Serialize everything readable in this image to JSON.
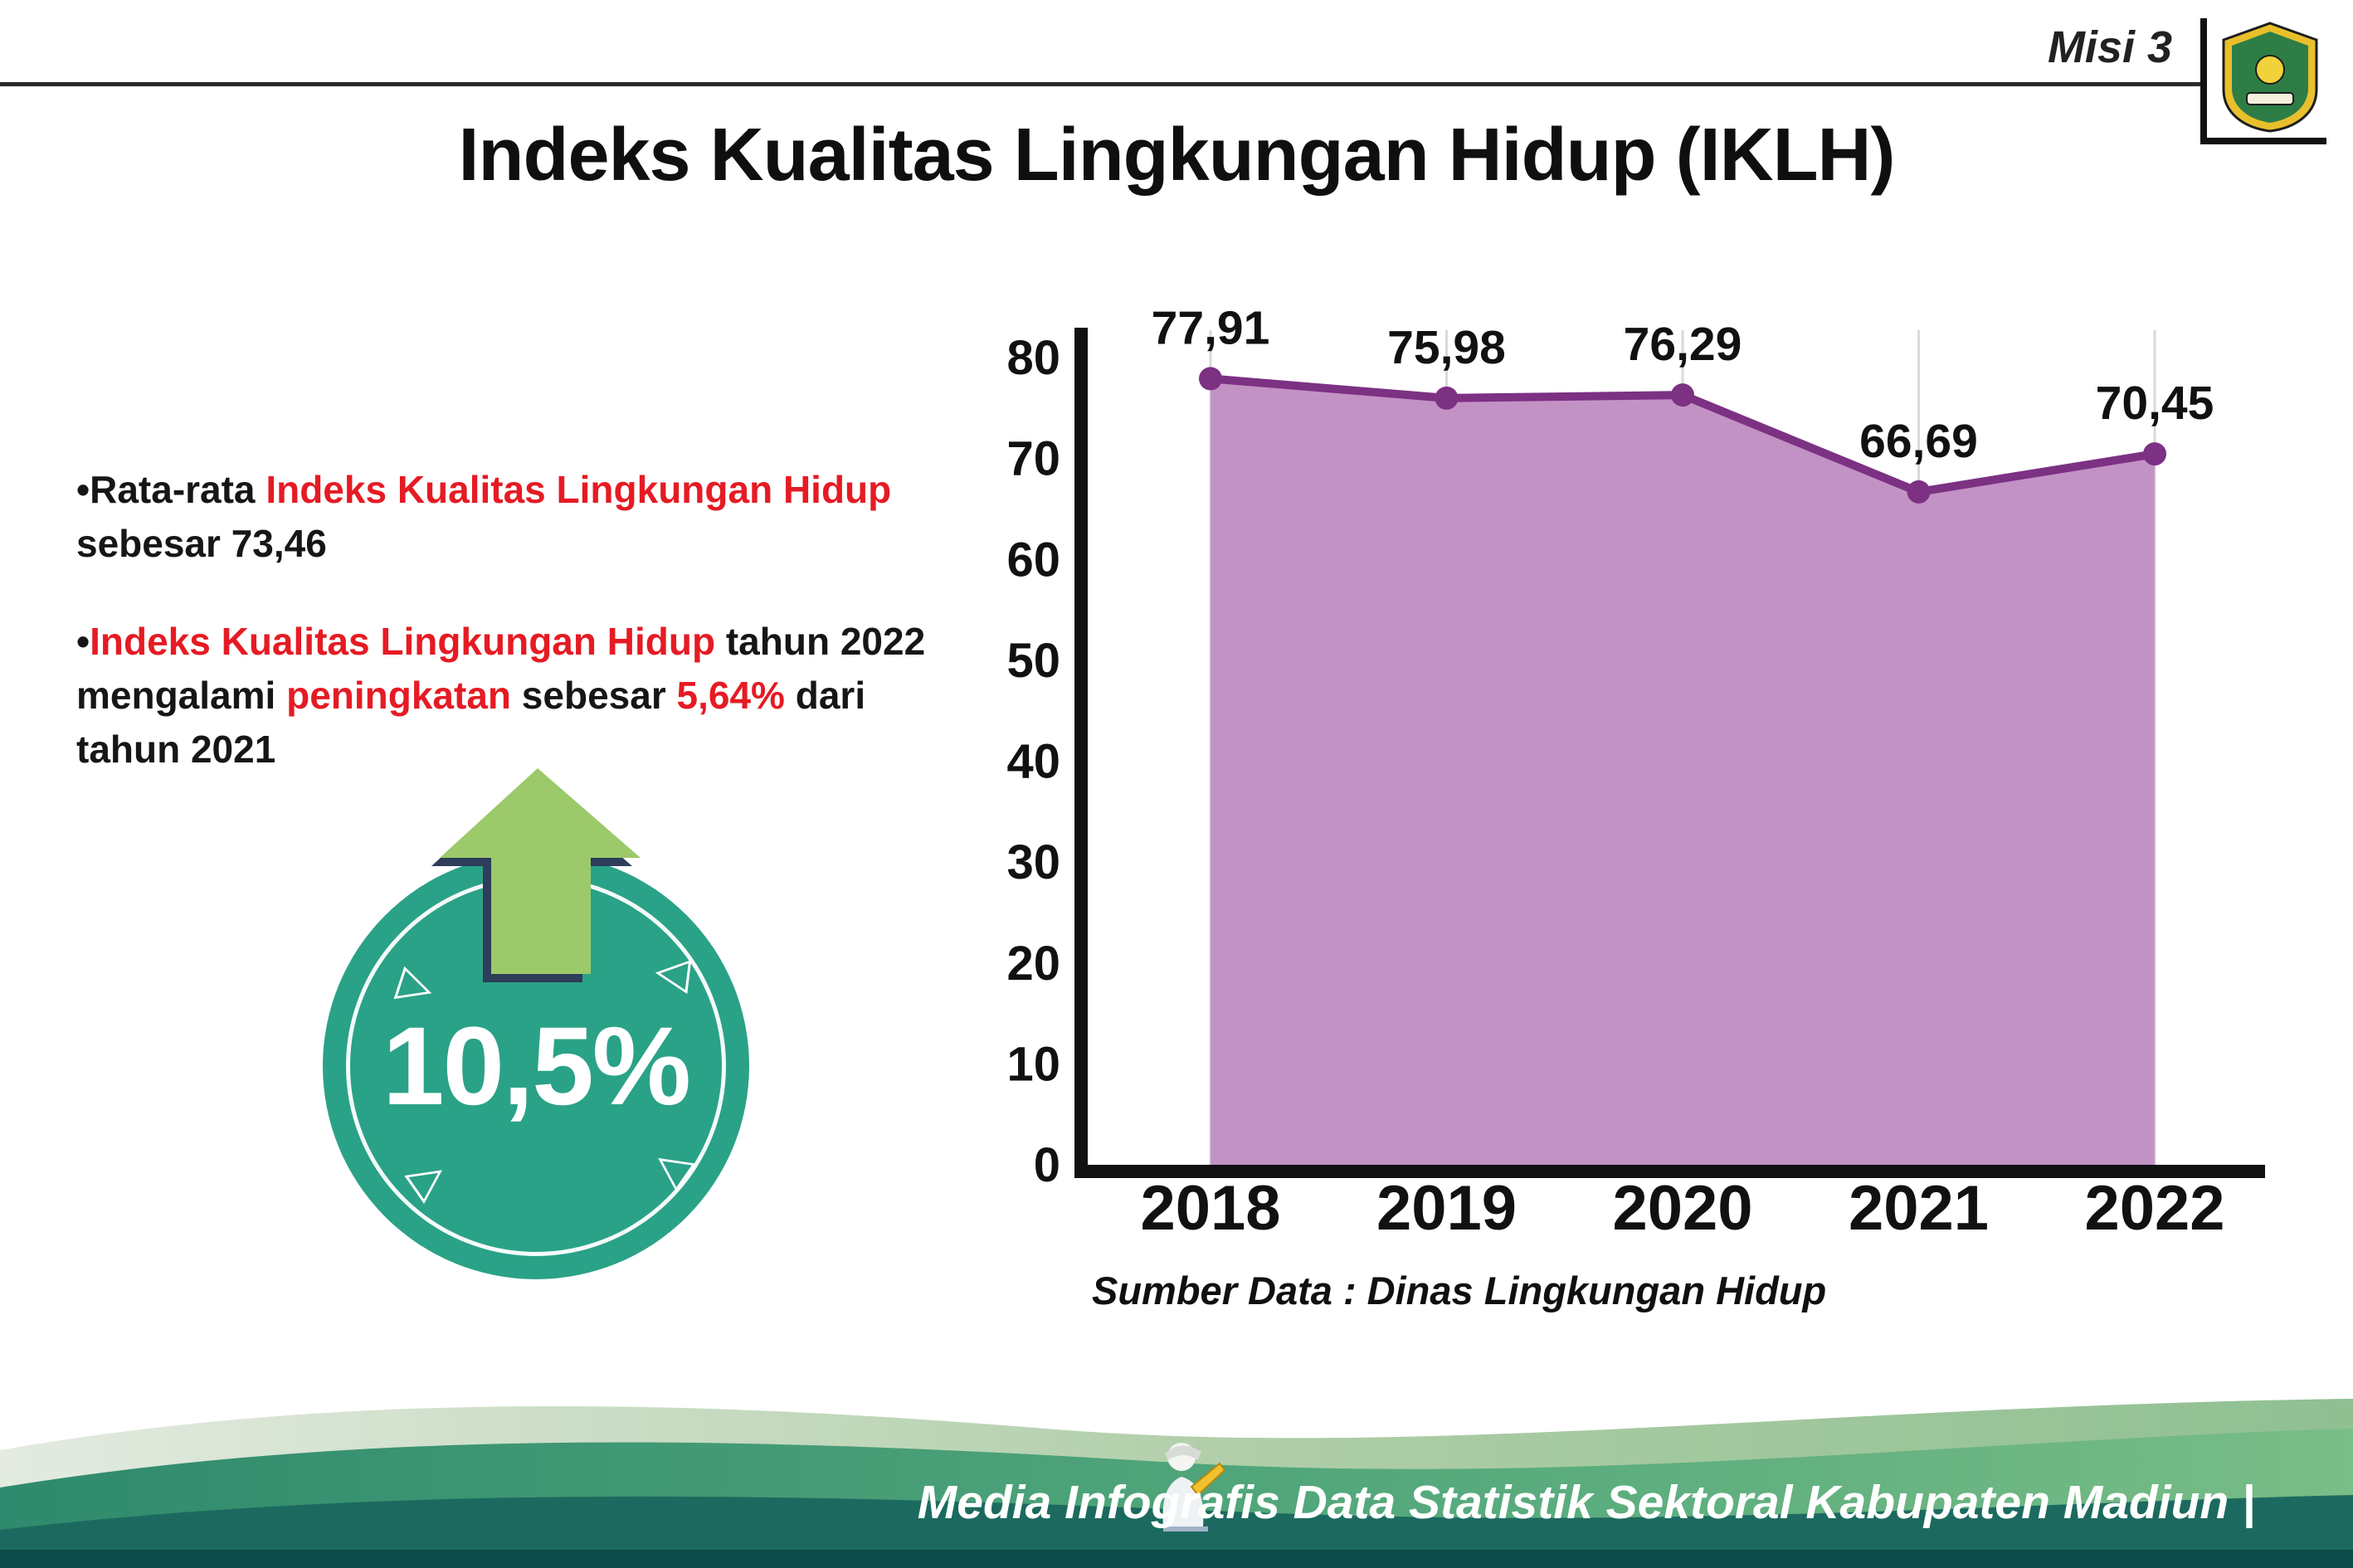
{
  "header": {
    "misi_label": "Misi 3",
    "title": "Indeks Kualitas Lingkungan Hidup (IKLH)"
  },
  "bullets": {
    "dot": "•",
    "b1": {
      "pre": "Rata-rata ",
      "red": "Indeks Kualitas Lingkungan Hidup",
      "post": " sebesar 73,46"
    },
    "b2": {
      "red1": "Indeks Kualitas Lingkungan Hidup",
      "mid1": " tahun 2022 mengalami ",
      "red2": "peningkatan",
      "mid2": " sebesar ",
      "red3": "5,64%",
      "post": " dari tahun 2021"
    }
  },
  "badge": {
    "value": "10,5%",
    "triangle_glyph": "▷",
    "circle_color": "#2aa287",
    "arrow_color": "#9cc96a",
    "arrow_outline_color": "#2e3d5a"
  },
  "chart_data": {
    "type": "area",
    "title": "Indeks Kualitas Lingkungan Hidup (IKLH)",
    "categories": [
      "2018",
      "2019",
      "2020",
      "2021",
      "2022"
    ],
    "values": [
      77.91,
      75.98,
      76.29,
      66.69,
      70.45
    ],
    "value_labels": [
      "77,91",
      "75,98",
      "76,29",
      "66,69",
      "70,45"
    ],
    "ylim": [
      0,
      80
    ],
    "yticks": [
      0,
      10,
      20,
      30,
      40,
      50,
      60,
      70,
      80
    ],
    "xlabel": "",
    "ylabel": "",
    "grid": "vertical-only",
    "legend": "none",
    "source": "Sumber Data : Dinas Lingkungan Hidup",
    "fill_color": "#c392c5",
    "line_color": "#7c3183",
    "point_color": "#7c3183",
    "grid_color": "#d9d9d9",
    "axis_color": "#111111",
    "label_color": "#111111"
  },
  "footer": {
    "text": "Media Infografis Data Statistik Sektoral Kabupaten Madiun |"
  }
}
